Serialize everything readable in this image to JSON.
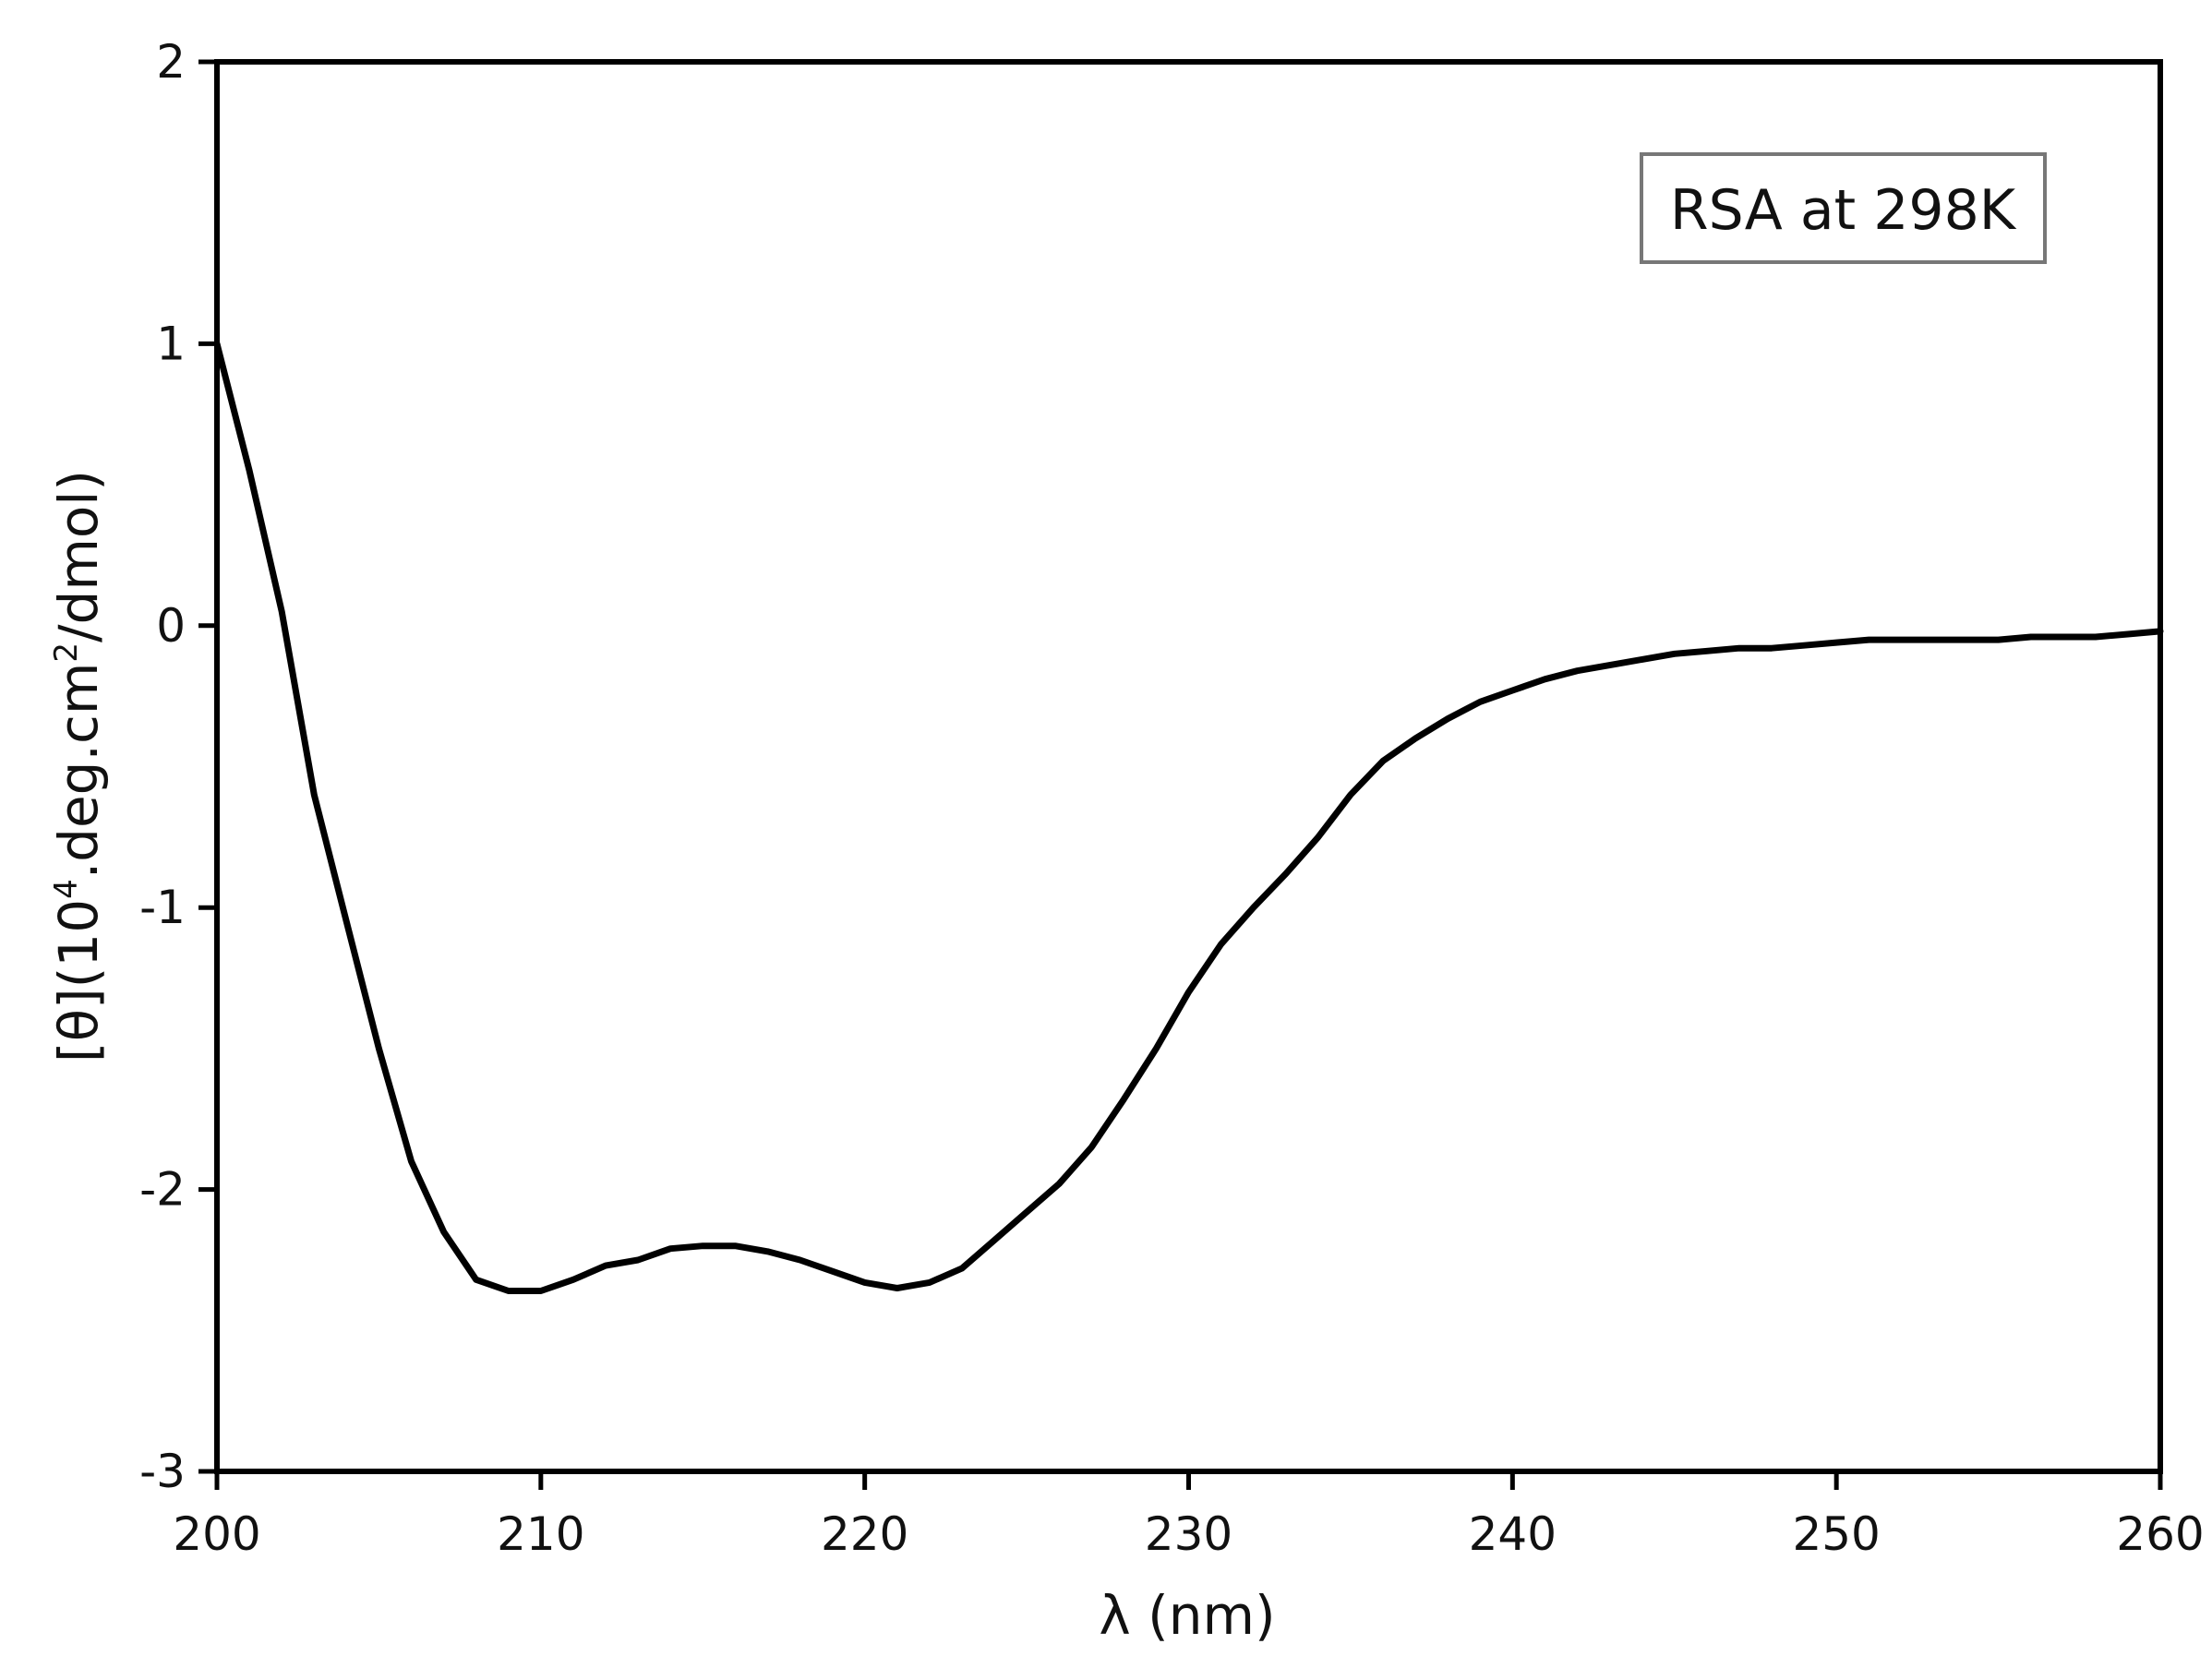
{
  "chart_data": {
    "type": "line",
    "xlabel": "λ (nm)",
    "ylabel_parts": [
      "[θ](10",
      "4",
      ".deg.cm",
      "2",
      "/dmol)"
    ],
    "xlim": [
      200,
      260
    ],
    "ylim": [
      -3,
      2
    ],
    "xticks": [
      200,
      210,
      220,
      230,
      240,
      250,
      260
    ],
    "yticks": [
      2,
      1,
      0,
      -1,
      -2,
      -3
    ],
    "ytick_labels": [
      "2",
      "1",
      "0",
      "-1",
      "-2",
      "-3"
    ],
    "grid": false,
    "legend_position": "top-right",
    "series": [
      {
        "name": "RSA at 298K",
        "color": "#000000",
        "x": [
          200,
          201,
          202,
          203,
          204,
          205,
          206,
          207,
          208,
          209,
          210,
          211,
          212,
          213,
          214,
          215,
          216,
          217,
          218,
          219,
          220,
          221,
          222,
          223,
          224,
          225,
          226,
          227,
          228,
          229,
          230,
          231,
          232,
          233,
          234,
          235,
          236,
          237,
          238,
          239,
          240,
          241,
          242,
          243,
          244,
          245,
          246,
          247,
          248,
          249,
          250,
          251,
          252,
          253,
          254,
          255,
          256,
          257,
          258,
          259,
          260
        ],
        "y": [
          1.0,
          0.55,
          0.05,
          -0.6,
          -1.05,
          -1.5,
          -1.9,
          -2.15,
          -2.32,
          -2.36,
          -2.36,
          -2.32,
          -2.27,
          -2.25,
          -2.21,
          -2.2,
          -2.2,
          -2.22,
          -2.25,
          -2.29,
          -2.33,
          -2.35,
          -2.33,
          -2.28,
          -2.18,
          -2.08,
          -1.98,
          -1.85,
          -1.68,
          -1.5,
          -1.3,
          -1.13,
          -1.0,
          -0.88,
          -0.75,
          -0.6,
          -0.48,
          -0.4,
          -0.33,
          -0.27,
          -0.23,
          -0.19,
          -0.16,
          -0.14,
          -0.12,
          -0.1,
          -0.09,
          -0.08,
          -0.08,
          -0.07,
          -0.06,
          -0.05,
          -0.05,
          -0.05,
          -0.05,
          -0.05,
          -0.04,
          -0.04,
          -0.04,
          -0.03,
          -0.02
        ]
      }
    ]
  }
}
